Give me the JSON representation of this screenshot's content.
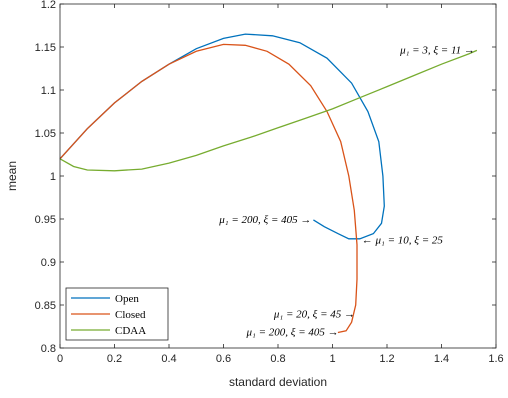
{
  "chart_data": {
    "type": "line",
    "xlabel": "standard deviation",
    "ylabel": "mean",
    "xlim": [
      0,
      1.6
    ],
    "ylim": [
      0.8,
      1.2
    ],
    "xticks": [
      "0",
      "0.2",
      "0.4",
      "0.6",
      "0.8",
      "1",
      "1.2",
      "1.4",
      "1.6"
    ],
    "yticks": [
      "0.8",
      "0.85",
      "0.9",
      "0.95",
      "1",
      "1.05",
      "1.1",
      "1.15",
      "1.2"
    ],
    "xtick_values": [
      0,
      0.2,
      0.4,
      0.6,
      0.8,
      1.0,
      1.2,
      1.4,
      1.6
    ],
    "ytick_values": [
      0.8,
      0.85,
      0.9,
      0.95,
      1.0,
      1.05,
      1.1,
      1.15,
      1.2
    ],
    "grid": false,
    "legend_position": "bottom-left",
    "series": [
      {
        "name": "Open",
        "color": "#0072BD",
        "points": [
          [
            0,
            1.02
          ],
          [
            0.1,
            1.055
          ],
          [
            0.2,
            1.085
          ],
          [
            0.3,
            1.11
          ],
          [
            0.4,
            1.13
          ],
          [
            0.5,
            1.148
          ],
          [
            0.6,
            1.16
          ],
          [
            0.68,
            1.165
          ],
          [
            0.78,
            1.163
          ],
          [
            0.88,
            1.155
          ],
          [
            0.98,
            1.137
          ],
          [
            1.07,
            1.108
          ],
          [
            1.13,
            1.075
          ],
          [
            1.17,
            1.04
          ],
          [
            1.185,
            1.0
          ],
          [
            1.19,
            0.965
          ],
          [
            1.18,
            0.945
          ],
          [
            1.15,
            0.933
          ],
          [
            1.1,
            0.927
          ],
          [
            1.06,
            0.927
          ],
          [
            1.02,
            0.933
          ],
          [
            0.97,
            0.941
          ],
          [
            0.93,
            0.949
          ]
        ]
      },
      {
        "name": "Closed",
        "color": "#D95319",
        "points": [
          [
            0,
            1.02
          ],
          [
            0.1,
            1.055
          ],
          [
            0.2,
            1.085
          ],
          [
            0.3,
            1.11
          ],
          [
            0.4,
            1.13
          ],
          [
            0.5,
            1.145
          ],
          [
            0.6,
            1.153
          ],
          [
            0.68,
            1.152
          ],
          [
            0.76,
            1.145
          ],
          [
            0.84,
            1.13
          ],
          [
            0.92,
            1.105
          ],
          [
            0.98,
            1.075
          ],
          [
            1.03,
            1.04
          ],
          [
            1.06,
            1.0
          ],
          [
            1.08,
            0.96
          ],
          [
            1.09,
            0.92
          ],
          [
            1.09,
            0.88
          ],
          [
            1.085,
            0.85
          ],
          [
            1.07,
            0.83
          ],
          [
            1.05,
            0.82
          ],
          [
            1.02,
            0.818
          ]
        ]
      },
      {
        "name": "CDAA",
        "color": "#77AC30",
        "points": [
          [
            0,
            1.02
          ],
          [
            0.05,
            1.011
          ],
          [
            0.1,
            1.007
          ],
          [
            0.2,
            1.006
          ],
          [
            0.3,
            1.008
          ],
          [
            0.4,
            1.015
          ],
          [
            0.5,
            1.024
          ],
          [
            0.6,
            1.035
          ],
          [
            0.7,
            1.045
          ],
          [
            0.8,
            1.056
          ],
          [
            0.9,
            1.067
          ],
          [
            1.0,
            1.078
          ],
          [
            1.1,
            1.091
          ],
          [
            1.2,
            1.104
          ],
          [
            1.3,
            1.117
          ],
          [
            1.4,
            1.13
          ],
          [
            1.5,
            1.142
          ],
          [
            1.53,
            1.146
          ]
        ]
      }
    ],
    "annotations": [
      {
        "text": "μ₁ = 3, ξ = 11 →",
        "x": 1.53,
        "y": 1.147,
        "anchor": "end"
      },
      {
        "text": "μ₁ = 200, ξ = 405 →",
        "x": 0.93,
        "y": 0.95,
        "anchor": "end"
      },
      {
        "text": "← μ₁ = 10, ξ = 25",
        "x": 1.1,
        "y": 0.926,
        "anchor": "start"
      },
      {
        "text": "μ₁ = 20, ξ = 45 →",
        "x": 1.09,
        "y": 0.84,
        "anchor": "end"
      },
      {
        "text": "μ₁ = 200, ξ = 405 →",
        "x": 1.03,
        "y": 0.819,
        "anchor": "end"
      }
    ]
  }
}
